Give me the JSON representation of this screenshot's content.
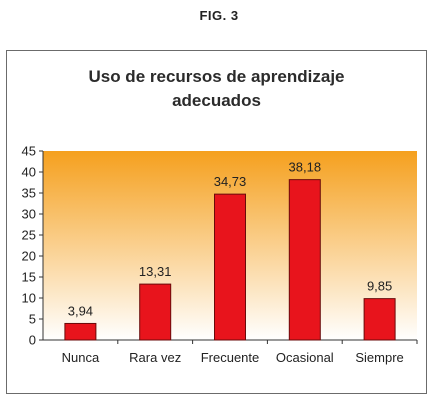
{
  "figure_label": "FIG. 3",
  "chart_data": {
    "type": "bar",
    "title_line1": "Uso de recursos de aprendizaje",
    "title_line2": "adecuados",
    "categories": [
      "Nunca",
      "Rara vez",
      "Frecuente",
      "Ocasional",
      "Siempre"
    ],
    "values": [
      3.94,
      13.31,
      34.73,
      38.18,
      9.85
    ],
    "value_labels": [
      "3,94",
      "13,31",
      "34,73",
      "38,18",
      "9,85"
    ],
    "y_ticks": [
      "0",
      "5",
      "10",
      "15",
      "20",
      "25",
      "30",
      "35",
      "40",
      "45"
    ],
    "ylim": [
      0,
      45
    ],
    "grid": false,
    "legend": "none",
    "colors": {
      "bar_fill": "#e8141c",
      "bar_stroke": "#6a0a0a",
      "plot_gradient_top": "#f5a01e",
      "plot_gradient_bottom": "#ffffff"
    }
  }
}
